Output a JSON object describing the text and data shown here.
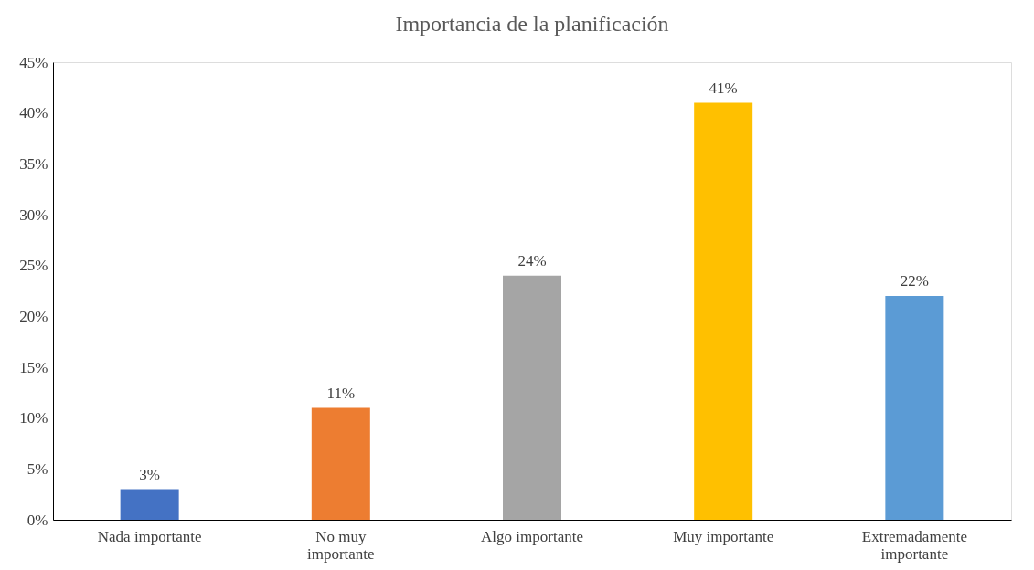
{
  "chart_data": {
    "type": "bar",
    "title": "Importancia de la planificación",
    "categories": [
      "Nada importante",
      "No muy importante",
      "Algo importante",
      "Muy importante",
      "Extremadamente importante"
    ],
    "values": [
      3,
      11,
      24,
      41,
      22
    ],
    "value_labels": [
      "3%",
      "11%",
      "24%",
      "41%",
      "22%"
    ],
    "colors": [
      "#4472c4",
      "#ed7d31",
      "#a5a5a5",
      "#ffc000",
      "#5b9bd5"
    ],
    "ylim": [
      0,
      45
    ],
    "yticks": [
      {
        "value": 0,
        "label": "0%"
      },
      {
        "value": 5,
        "label": "5%"
      },
      {
        "value": 10,
        "label": "10%"
      },
      {
        "value": 15,
        "label": "15%"
      },
      {
        "value": 20,
        "label": "20%"
      },
      {
        "value": 25,
        "label": "25%"
      },
      {
        "value": 30,
        "label": "30%"
      },
      {
        "value": 35,
        "label": "35%"
      },
      {
        "value": 40,
        "label": "40%"
      },
      {
        "value": 45,
        "label": "45%"
      }
    ],
    "grid": false,
    "legend": false
  }
}
